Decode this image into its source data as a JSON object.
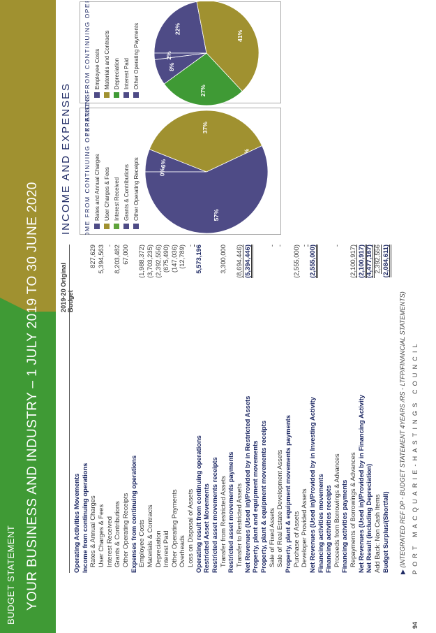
{
  "header": {
    "line1": "BUDGET STATEMENT",
    "line2": "YOUR BUSINESS AND INDUSTRY – 1 JULY 2019 TO 30 JUNE 2020"
  },
  "table": {
    "column_header": "2019-20 Original Budget",
    "rows": [
      {
        "label": "Operating Activities Movements",
        "value": "",
        "style": "h"
      },
      {
        "label": "Income from continuing operations",
        "value": "",
        "style": "h"
      },
      {
        "label": "Rates & Annual Charges",
        "value": "827,629",
        "style": "ind"
      },
      {
        "label": "User Charges & Fees",
        "value": "5,394,563",
        "style": "ind"
      },
      {
        "label": "Interest Received",
        "value": "-",
        "style": "ind"
      },
      {
        "label": "Grants & Contributions",
        "value": "8,203,482",
        "style": "ind"
      },
      {
        "label": "Other Operating Receipts",
        "value": "67,000",
        "style": "ind"
      },
      {
        "label": "Expenses from continuing operations",
        "value": "",
        "style": "h"
      },
      {
        "label": "Employee Costs",
        "value": "(1,988,372)",
        "style": "ind"
      },
      {
        "label": "Materials & Contracts",
        "value": "(3,703,235)",
        "style": "ind"
      },
      {
        "label": "Depreciation",
        "value": "(2,392,556)",
        "style": "ind"
      },
      {
        "label": "Interest Paid",
        "value": "(675,490)",
        "style": "ind"
      },
      {
        "label": "Other Operating Payments",
        "value": "(147,036)",
        "style": "ind"
      },
      {
        "label": "Overheads",
        "value": "(12,789)",
        "style": "ind"
      },
      {
        "label": "Loss on Disposal of Assets",
        "value": "-",
        "style": "ind ul"
      },
      {
        "label": "Operating result from continuing operations",
        "value": "5,573,196",
        "style": "b"
      },
      {
        "label": "Restricted Asset Movements",
        "value": "",
        "style": "h"
      },
      {
        "label": "Restricted asset movements receipts",
        "value": "",
        "style": "h"
      },
      {
        "label": "Transfer from Restricted Assets",
        "value": "3,300,000",
        "style": "ind"
      },
      {
        "label": "Restricted asset movements payments",
        "value": "",
        "style": "h"
      },
      {
        "label": "Transfer to Restricted Assets",
        "value": "(8,694,446)",
        "style": "ind ul"
      },
      {
        "label": "Net Revenues (Used in)/Provided by in Restricted Assets",
        "value": "(5,394,446)",
        "style": "b dl"
      },
      {
        "label": "Property, plant and equipment movements",
        "value": "",
        "style": "h"
      },
      {
        "label": "Property, plant & equipment movements receipts",
        "value": "",
        "style": "h"
      },
      {
        "label": "Sale of Fixed Assets",
        "value": "-",
        "style": "ind"
      },
      {
        "label": "Sale of Real Estate Development Assets",
        "value": "-",
        "style": "ind"
      },
      {
        "label": "Property, plant & equipment movements payments",
        "value": "",
        "style": "h"
      },
      {
        "label": "Purchase of Assets",
        "value": "(2,555,000)",
        "style": "ind"
      },
      {
        "label": "Developer Provided Assets",
        "value": "-",
        "style": "ind ul"
      },
      {
        "label": "Net Revenues (Used in)/Provided by in Investing Activity",
        "value": "(2,555,000)",
        "style": "b dl"
      },
      {
        "label": "Financing activities movements",
        "value": "",
        "style": "h"
      },
      {
        "label": "Financing activities receipts",
        "value": "",
        "style": "h"
      },
      {
        "label": "Proceeds from Borrowings & Advances",
        "value": "-",
        "style": "ind"
      },
      {
        "label": "Financing activities payments",
        "value": "",
        "style": "h"
      },
      {
        "label": "Repayments of Borrowings & Advances",
        "value": "(2,100,917)",
        "style": "ind ul"
      },
      {
        "label": "Net Revenues (Used in)/Provided by in Financing Activity",
        "value": "(2,100,917)",
        "style": "b dl"
      },
      {
        "label": "Net Result (including Depreciation)",
        "value": "(4,477,167)",
        "style": "b dl"
      },
      {
        "label": "Add Back: Non Cash Items",
        "value": "2,392,556",
        "style": "ind0 ul"
      },
      {
        "label": "Budget Surplus/(Shortfall)",
        "value": "(2,084,611)",
        "style": "b dl"
      }
    ]
  },
  "footer": {
    "ref": "(INTEGRATED REF DP - BUDGET STATEMENT 4YEARS /RS - LTFP/FINANCIAL STATEMENTS)",
    "council": "PORT MACQUARIE-HASTINGS COUNCIL",
    "page": "94"
  },
  "section_title": "INCOME AND EXPENSES",
  "chart_data": [
    {
      "type": "pie",
      "title": "INCOME FROM CONTINUING OPERATIONS",
      "categories": [
        "Rates and Annual Charges",
        "User Charges & Fees",
        "Interest Received",
        "Grants & Contributions",
        "Other Operating Receipts"
      ],
      "values": [
        6,
        37,
        0,
        57,
        0
      ],
      "labels": [
        "6%",
        "37%",
        "0%",
        "57%",
        "0%"
      ],
      "colors": [
        "#4e4b86",
        "#a09130",
        "#5fa33c",
        "#4e4b86",
        "#4e4b86"
      ]
    },
    {
      "type": "pie",
      "title": "EXPENSES FROM CONTINUING OPERATIONS",
      "categories": [
        "Employee Costs",
        "Materials and Contracts",
        "Depreciation",
        "Interest Paid",
        "Other Operating Payments"
      ],
      "values": [
        22,
        41,
        27,
        8,
        2
      ],
      "labels": [
        "22%",
        "41%",
        "27%",
        "8%",
        "2%"
      ],
      "colors": [
        "#4e4b86",
        "#a09130",
        "#3f9a35",
        "#4e4b86",
        "#4e4b86"
      ]
    }
  ],
  "colors": {
    "navy": "#1f2a64",
    "purple": "#4e4b86",
    "olive": "#a09130",
    "green": "#3f9a35"
  }
}
